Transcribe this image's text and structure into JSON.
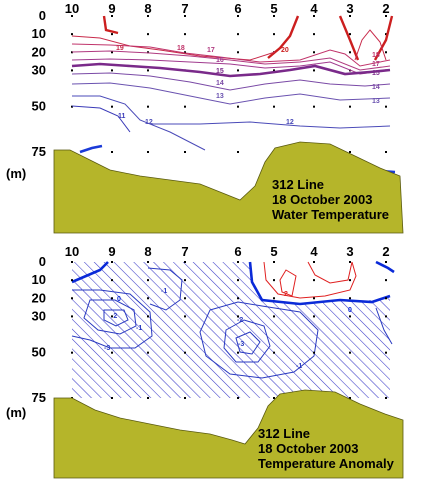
{
  "chart_data": [
    {
      "type": "contour",
      "panel": "Water Temperature",
      "title_lines": [
        "312 Line",
        "18 October 2003",
        "Water Temperature"
      ],
      "x_stations": [
        "10",
        "9",
        "8",
        "7",
        "6",
        "5",
        "4",
        "3",
        "2"
      ],
      "y_depth_ticks": [
        "0",
        "10",
        "20",
        "30",
        "50",
        "75"
      ],
      "y_unit": "(m)",
      "ylim": [
        0,
        75
      ],
      "contours": [
        {
          "level": 20,
          "label": "20",
          "color": "#cc1f1f"
        },
        {
          "level": 19,
          "label": "19",
          "color": "#c82a4a"
        },
        {
          "level": 18,
          "label": "18",
          "color": "#c0336a"
        },
        {
          "level": 17,
          "label": "17",
          "color": "#b03a80"
        },
        {
          "level": 16,
          "label": "16",
          "color": "#a03a8e"
        },
        {
          "level": 15,
          "label": "15",
          "color": "#7a2a8a"
        },
        {
          "level": 14,
          "label": "14",
          "color": "#7a4aa6"
        },
        {
          "level": 13,
          "label": "13",
          "color": "#6a52b0"
        },
        {
          "level": 12,
          "label": "12",
          "color": "#4a4ab8"
        },
        {
          "level": 11,
          "label": "11",
          "color": "#3a3ab8"
        }
      ],
      "bottom_fill_color": "#b5b52a"
    },
    {
      "type": "contour",
      "panel": "Temperature Anomaly",
      "title_lines": [
        "312 Line",
        "18 October 2003",
        "Temperature Anomaly"
      ],
      "x_stations": [
        "10",
        "9",
        "8",
        "7",
        "6",
        "5",
        "4",
        "3",
        "2"
      ],
      "y_depth_ticks": [
        "0",
        "10",
        "20",
        "30",
        "50",
        "75"
      ],
      "y_unit": "(m)",
      "ylim": [
        0,
        75
      ],
      "contour_labels": [
        "1",
        "2",
        "-1",
        "-2",
        "-3",
        "0"
      ],
      "negative_region_hatch": true,
      "hatch_color": "#3a3ac8",
      "positive_color": "#e02020",
      "zero_color": "#0a2ad8",
      "bottom_fill_color": "#b5b52a"
    }
  ]
}
